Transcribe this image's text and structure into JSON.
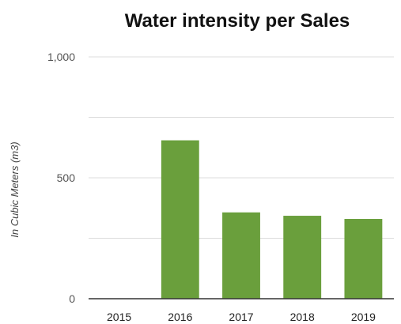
{
  "chart_data": {
    "type": "bar",
    "title": "Water intensity per Sales",
    "xlabel": "",
    "ylabel": "In Cubic Meters (m3)",
    "categories": [
      "2015",
      "2016",
      "2017",
      "2018",
      "2019"
    ],
    "values": [
      0,
      655,
      357,
      343,
      330
    ],
    "ylim": [
      0,
      1000
    ],
    "yticks": [
      0,
      250,
      500,
      750,
      1000
    ],
    "ytick_labels": [
      "0",
      "",
      "500",
      "",
      "1,000"
    ],
    "grid": true,
    "legend": "none",
    "bar_color": "#6a9f3c"
  }
}
